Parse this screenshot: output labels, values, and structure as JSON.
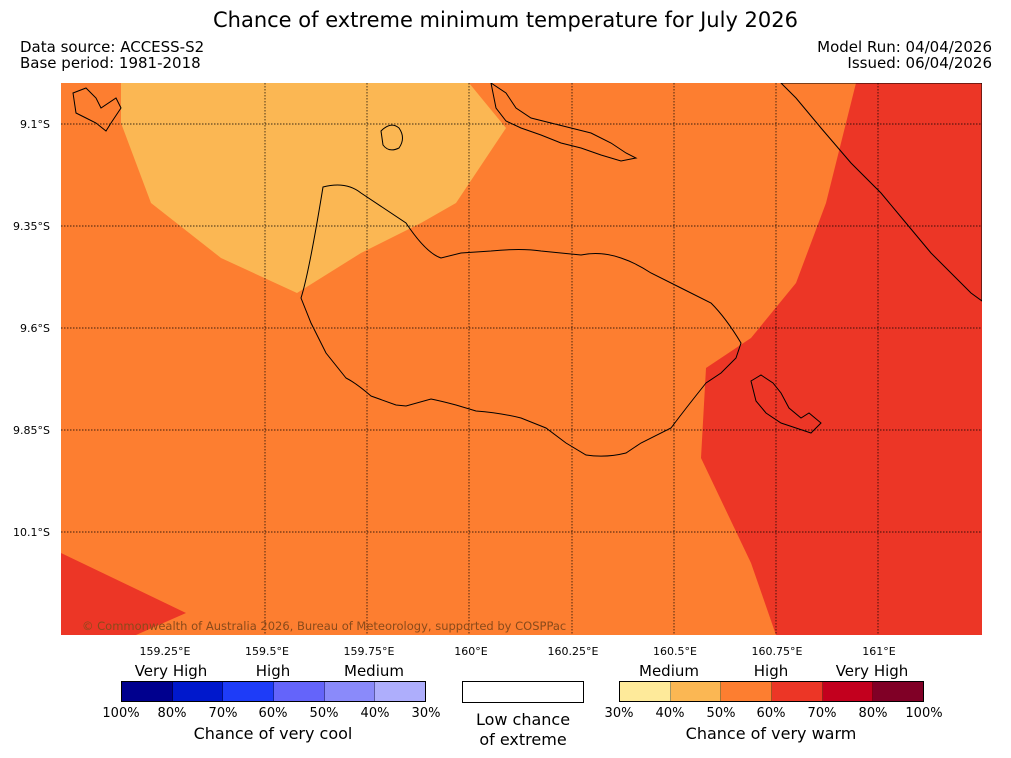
{
  "title": "Chance of extreme minimum temperature for July 2026",
  "header": {
    "data_source": "Data source: ACCESS-S2",
    "base_period": "Base period: 1981-2018",
    "model_run": "Model Run: 04/04/2026",
    "issued": "Issued: 06/04/2026"
  },
  "map": {
    "lat_labels": [
      "9.1°S",
      "9.35°S",
      "9.6°S",
      "9.85°S",
      "10.1°S"
    ],
    "lon_labels": [
      "159.25°E",
      "159.5°E",
      "159.75°E",
      "160°E",
      "160.25°E",
      "160.5°E",
      "160.75°E",
      "161°E"
    ],
    "copyright": "© Commonwealth of Australia 2026, Bureau of Meteorology, supported by COSPPac",
    "zone_colors": {
      "medium": "#fbb753",
      "high": "#fd7e30",
      "very_high": "#ec3626"
    }
  },
  "legend": {
    "cool": {
      "title": "Chance of very cool",
      "categories": [
        "Very High",
        "High",
        "Medium"
      ],
      "percentages": [
        "100%",
        "80%",
        "70%",
        "60%",
        "50%",
        "40%",
        "30%"
      ],
      "colors": [
        "#00008e",
        "#0018cc",
        "#1e3cf8",
        "#6464fa",
        "#8a8afa",
        "#aeaefc"
      ]
    },
    "low": {
      "line1": "Low chance",
      "line2": "of extreme"
    },
    "warm": {
      "title": "Chance of very warm",
      "categories": [
        "Medium",
        "High",
        "Very High"
      ],
      "percentages": [
        "30%",
        "40%",
        "50%",
        "60%",
        "70%",
        "80%",
        "100%"
      ],
      "colors": [
        "#feea9a",
        "#fbb753",
        "#fd7e30",
        "#ec3626",
        "#c3001e",
        "#800026"
      ]
    }
  }
}
